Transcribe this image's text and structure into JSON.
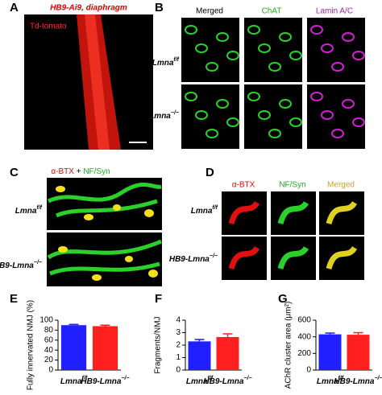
{
  "genotypes": [
    {
      "base": "Lmna",
      "sup": "f/f"
    },
    {
      "base": "HB9-Lmna",
      "sup": "−/−"
    }
  ],
  "panel_a": {
    "letter": "A",
    "title": "HB9-Ai9, diaphragm",
    "label": "Td-tomato"
  },
  "panel_b": {
    "letter": "B",
    "columns": [
      "Merged",
      "ChAT",
      "Lamin A/C"
    ]
  },
  "panel_c": {
    "letter": "C",
    "header": [
      "α-BTX",
      "+",
      "NF/Syn"
    ]
  },
  "panel_d": {
    "letter": "D",
    "columns": [
      "α-BTX",
      "NF/Syn",
      "Merged"
    ]
  },
  "chart_data": [
    {
      "type": "bar",
      "letter": "E",
      "ylabel": "Fully innervated NMJ (%)",
      "categories": [
        "Lmna",
        "HB9-Lmna"
      ],
      "category_superscripts": [
        "f/f",
        "−/−"
      ],
      "values": [
        90,
        88
      ],
      "errors": [
        1.5,
        2
      ],
      "colors": [
        "#1f1fff",
        "#ff1f1f"
      ],
      "ylim": [
        0,
        100
      ],
      "yticks": [
        0,
        20,
        40,
        60,
        80,
        100
      ]
    },
    {
      "type": "bar",
      "letter": "F",
      "ylabel": "Fragments/NMJ",
      "categories": [
        "Lmna",
        "HB9-Lmna"
      ],
      "category_superscripts": [
        "f/f",
        "−/−"
      ],
      "values": [
        2.3,
        2.65
      ],
      "errors": [
        0.15,
        0.25
      ],
      "colors": [
        "#1f1fff",
        "#ff1f1f"
      ],
      "ylim": [
        0,
        4
      ],
      "yticks": [
        0,
        1,
        2,
        3,
        4
      ]
    },
    {
      "type": "bar",
      "letter": "G",
      "ylabel": "AChR cluster area (μm²)",
      "categories": [
        "Lmna",
        "HB9-Lmna"
      ],
      "category_superscripts": [
        "f/f",
        "−/−"
      ],
      "values": [
        430,
        425
      ],
      "errors": [
        15,
        25
      ],
      "colors": [
        "#1f1fff",
        "#ff1f1f"
      ],
      "ylim": [
        0,
        600
      ],
      "yticks": [
        0,
        200,
        400,
        600
      ]
    }
  ]
}
